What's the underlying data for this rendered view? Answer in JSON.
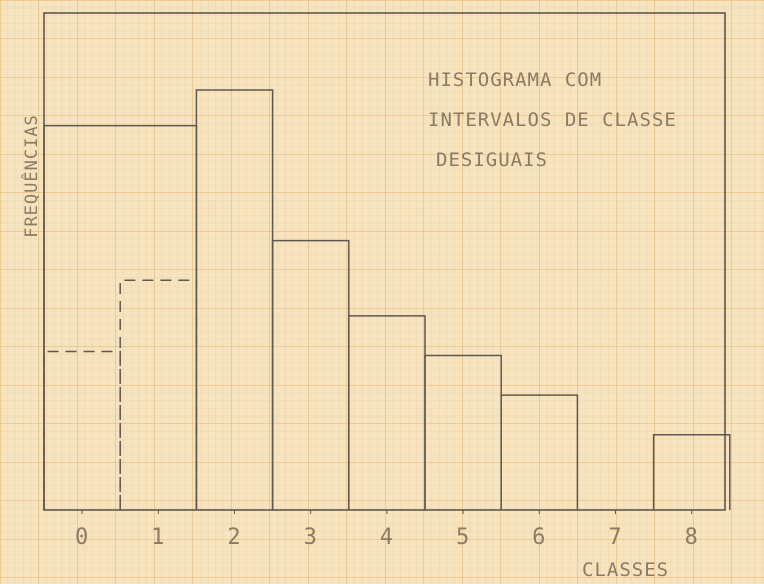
{
  "chart_data": {
    "type": "bar",
    "title_lines": [
      "HISTOGRAMA COM",
      "INTERVALOS DE CLASSE",
      "DESIGUAIS"
    ],
    "xlabel": "CLASSES",
    "ylabel": "FREQUÊNCIAS",
    "x_ticks": [
      "0",
      "1",
      "2",
      "3",
      "4",
      "5",
      "6",
      "7",
      "8"
    ],
    "xlim": [
      -0.5,
      8.5
    ],
    "ylim": [
      0,
      10.6
    ],
    "grid": true,
    "bars": [
      {
        "x0": -0.5,
        "x1": 1.5,
        "value": 9.7,
        "style": "solid"
      },
      {
        "x0": -0.5,
        "x1": 0.5,
        "value": 4.0,
        "style": "dashed"
      },
      {
        "x0": 0.5,
        "x1": 1.5,
        "value": 5.8,
        "style": "dashed"
      },
      {
        "x0": 1.5,
        "x1": 2.5,
        "value": 10.6,
        "style": "solid"
      },
      {
        "x0": 2.5,
        "x1": 3.5,
        "value": 6.8,
        "style": "solid"
      },
      {
        "x0": 3.5,
        "x1": 4.5,
        "value": 4.9,
        "style": "solid"
      },
      {
        "x0": 4.5,
        "x1": 5.5,
        "value": 3.9,
        "style": "solid"
      },
      {
        "x0": 5.5,
        "x1": 6.5,
        "value": 2.9,
        "style": "solid"
      },
      {
        "x0": 7.5,
        "x1": 8.5,
        "value": 1.9,
        "style": "solid"
      }
    ],
    "colors": {
      "paper": "#f6e3bf",
      "grid_minor": "#edc98c",
      "grid_major": "#e2b36a",
      "pencil": "#5e5850",
      "lettering": "#8c7a63"
    }
  }
}
